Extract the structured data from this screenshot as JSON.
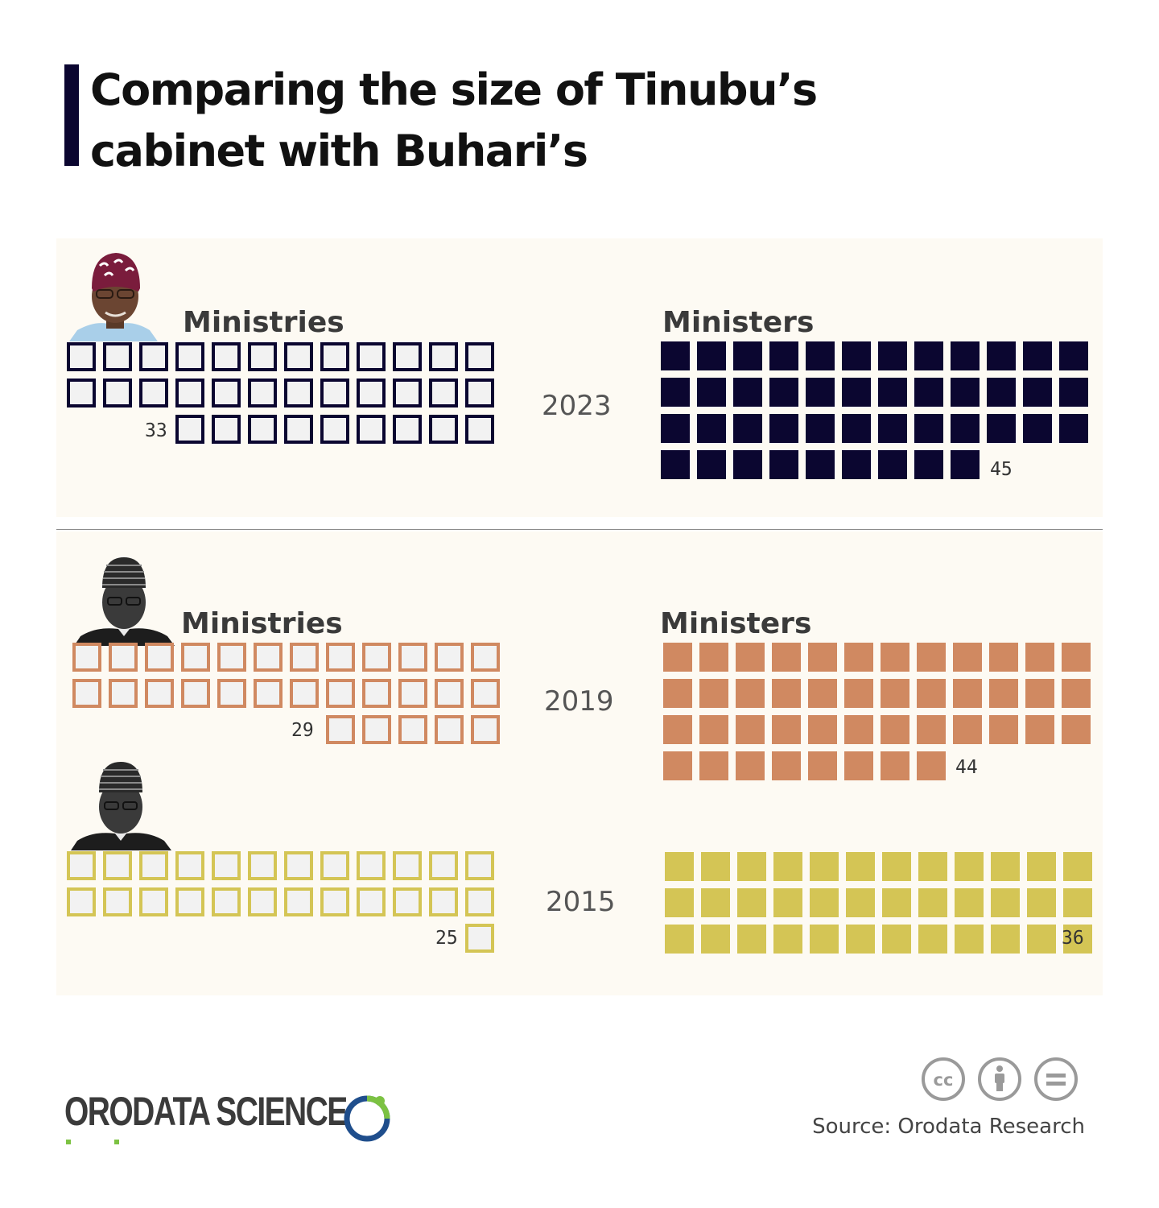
{
  "title": "Comparing the size of Tinubu’s cabinet with Buhari’s",
  "source": "Source: Orodata Research",
  "logo": {
    "text": "ORODATA SCIENCE",
    "icon": "orodata-ring-logo"
  },
  "license_icons": [
    "cc-icon",
    "by-attribution-icon",
    "no-derivatives-icon"
  ],
  "labels": {
    "ministries": "Ministries",
    "ministers": "Ministers"
  },
  "colors": {
    "tinubu": "#0b0630",
    "buhari_2019": "#d08961",
    "buhari_2015": "#d4c555",
    "empty_fill": "#f2f2f2",
    "panel_bg": "#fdfaf3"
  },
  "chart_data": {
    "type": "waffle",
    "columns": 12,
    "unit": "one square per ministry / minister",
    "series": [
      {
        "year": "2023",
        "president": "Tinubu",
        "ministries": 33,
        "ministers": 45
      },
      {
        "year": "2019",
        "president": "Buhari",
        "ministries": 29,
        "ministers": 44
      },
      {
        "year": "2015",
        "president": "Buhari",
        "ministries": 25,
        "ministers": 36
      }
    ]
  }
}
